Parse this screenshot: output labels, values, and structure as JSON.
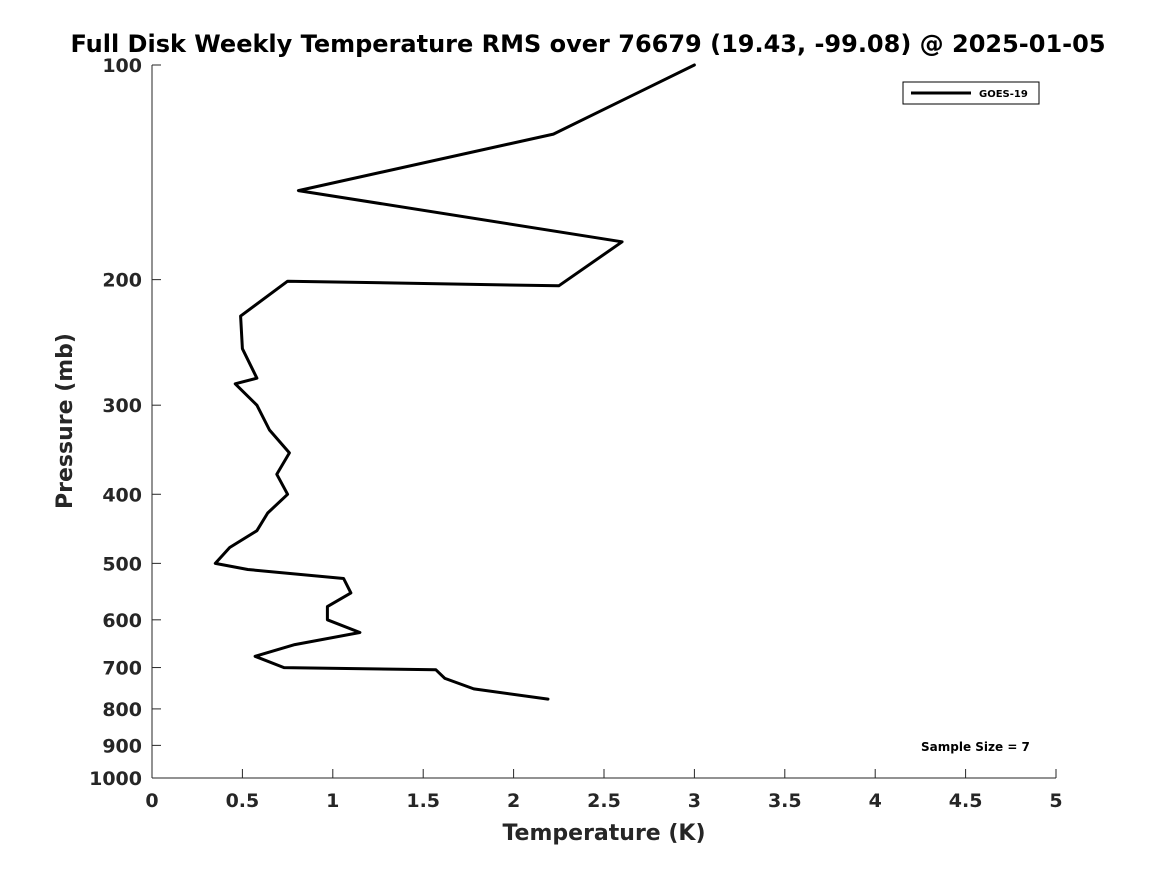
{
  "chart_data": {
    "type": "line",
    "title": "Full Disk Weekly Temperature RMS over 76679 (19.43, -99.08) @ 2025-01-05",
    "xlabel": "Temperature (K)",
    "ylabel": "Pressure (mb)",
    "xlim": [
      0,
      5
    ],
    "ylim": [
      100,
      1000
    ],
    "y_scale": "log",
    "y_reversed": true,
    "xticks": [
      0,
      0.5,
      1,
      1.5,
      2,
      2.5,
      3,
      3.5,
      4,
      4.5,
      5
    ],
    "xtick_labels": [
      "0",
      "0.5",
      "1",
      "1.5",
      "2",
      "2.5",
      "3",
      "3.5",
      "4",
      "4.5",
      "5"
    ],
    "yticks": [
      100,
      200,
      300,
      400,
      500,
      600,
      700,
      800,
      900,
      1000
    ],
    "ytick_labels": [
      "100",
      "200",
      "300",
      "400",
      "500",
      "600",
      "700",
      "800",
      "900",
      "1000"
    ],
    "grid": false,
    "legend_position": "top-right",
    "series": [
      {
        "name": "GOES-19",
        "color": "#000000",
        "x": [
          3.0,
          2.22,
          0.81,
          2.6,
          2.25,
          0.75,
          0.49,
          0.5,
          0.58,
          0.46,
          0.58,
          0.65,
          0.76,
          0.69,
          0.75,
          0.64,
          0.58,
          0.43,
          0.35,
          0.53,
          1.06,
          1.1,
          0.97,
          0.97,
          1.15,
          0.79,
          0.57,
          0.73,
          1.57,
          1.62,
          1.78,
          2.19
        ],
        "y": [
          100,
          125,
          150,
          177,
          204,
          201,
          225,
          250,
          275,
          280,
          300,
          325,
          350,
          375,
          400,
          425,
          450,
          475,
          500,
          510,
          525,
          550,
          575,
          600,
          625,
          650,
          675,
          700,
          705,
          725,
          750,
          775
        ]
      }
    ],
    "annotations": [
      {
        "text": "Sample Size = 7"
      }
    ]
  }
}
